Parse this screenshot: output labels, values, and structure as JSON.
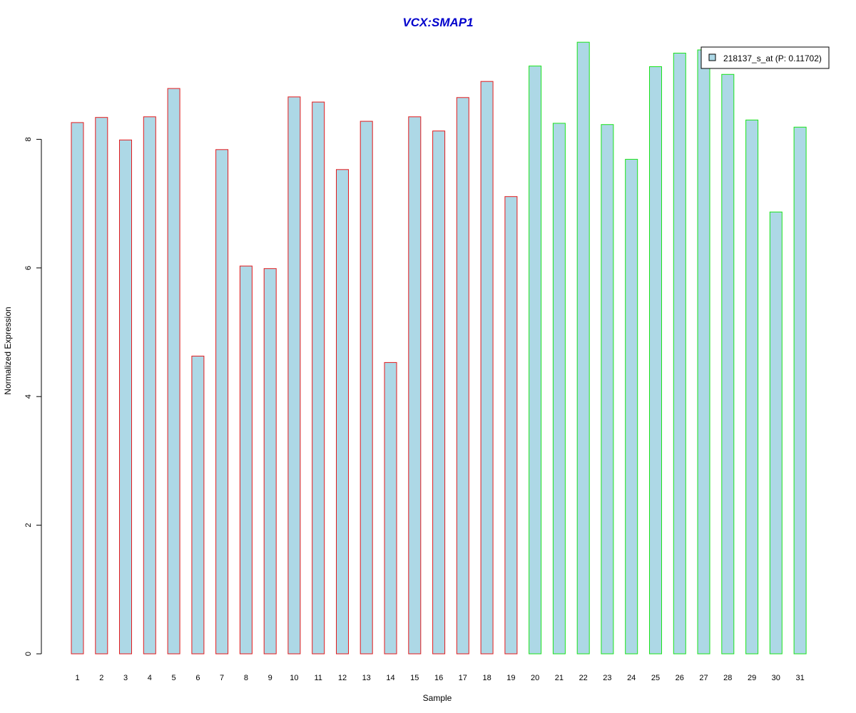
{
  "chart_data": {
    "type": "bar",
    "title": "VCX:SMAP1",
    "xlabel": "Sample",
    "ylabel": "Normalized Expression",
    "categories": [
      "1",
      "2",
      "3",
      "4",
      "5",
      "6",
      "7",
      "8",
      "9",
      "10",
      "11",
      "12",
      "13",
      "14",
      "15",
      "16",
      "17",
      "18",
      "19",
      "20",
      "21",
      "22",
      "23",
      "24",
      "25",
      "26",
      "27",
      "28",
      "29",
      "30",
      "31"
    ],
    "series": [
      {
        "name": "218137_s_at (P: 0.11702)",
        "values": [
          8.26,
          8.34,
          7.99,
          8.35,
          8.79,
          4.63,
          7.84,
          6.03,
          5.99,
          8.66,
          8.58,
          7.53,
          8.28,
          4.53,
          8.35,
          8.13,
          8.65,
          8.9,
          7.11,
          9.14,
          8.25,
          9.51,
          8.23,
          7.69,
          9.13,
          9.34,
          9.39,
          9.01,
          8.3,
          6.87,
          8.19
        ]
      }
    ],
    "groups": [
      {
        "from": 1,
        "to": 19,
        "border_color": "#e41a1c"
      },
      {
        "from": 20,
        "to": 31,
        "border_color": "#1be31b"
      }
    ],
    "bar_fill": "#add8e6",
    "title_color": "#0000cc",
    "yticks": [
      0,
      2,
      4,
      6,
      8
    ],
    "ylim": [
      0,
      9.6
    ],
    "legend_position": "top-right"
  }
}
